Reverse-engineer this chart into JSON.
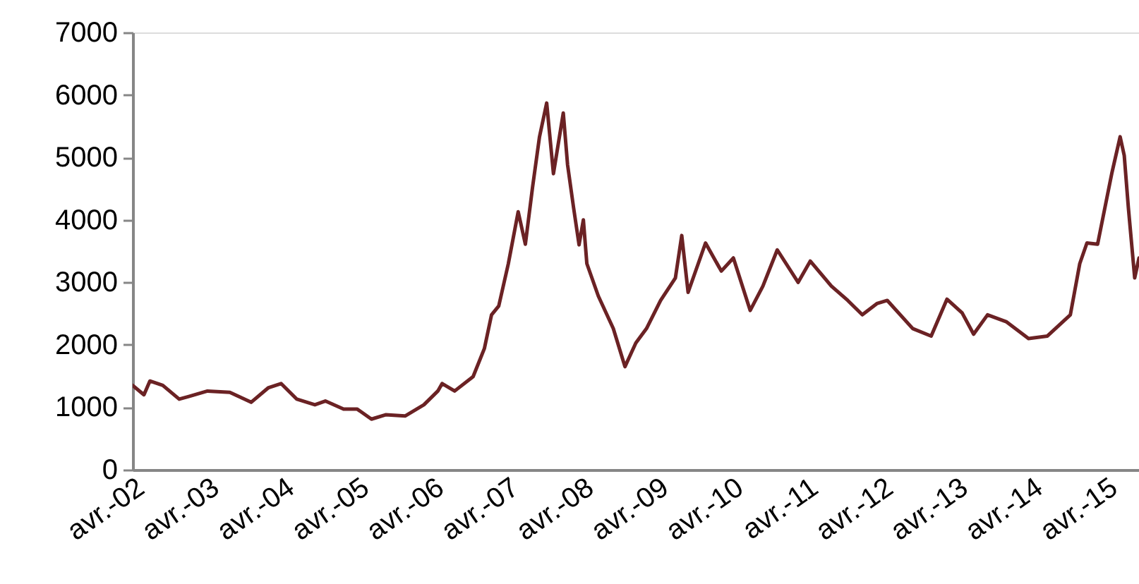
{
  "chart_data": {
    "type": "line",
    "x": [
      "2002-04-01",
      "2002-05-26",
      "2002-06-24",
      "2002-08-26",
      "2002-11-14",
      "2002-12-28",
      "2003-04-01",
      "2003-07-19",
      "2003-10-31",
      "2004-01-22",
      "2004-03-25",
      "2004-06-10",
      "2004-09-06",
      "2004-10-27",
      "2005-01-24",
      "2005-04-01",
      "2005-06-09",
      "2005-08-17",
      "2005-11-20",
      "2006-02-20",
      "2006-04-29",
      "2006-05-20",
      "2006-07-20",
      "2006-10-18",
      "2006-12-12",
      "2007-01-16",
      "2007-02-20",
      "2007-04-08",
      "2007-05-26",
      "2007-06-30",
      "2007-08-04",
      "2007-09-07",
      "2007-10-12",
      "2007-11-14",
      "2008-01-01",
      "2008-01-22",
      "2008-02-20",
      "2008-03-18",
      "2008-04-08",
      "2008-04-25",
      "2008-06-20",
      "2008-09-01",
      "2008-10-28",
      "2008-12-20",
      "2009-02-10",
      "2009-04-20",
      "2009-07-01",
      "2009-08-01",
      "2009-09-01",
      "2009-11-25",
      "2010-02-10",
      "2010-04-10",
      "2010-07-01",
      "2010-09-01",
      "2010-11-10",
      "2011-02-20",
      "2011-04-20",
      "2011-08-01",
      "2011-10-20",
      "2011-12-30",
      "2012-03-10",
      "2012-04-30",
      "2012-09-01",
      "2012-11-30",
      "2013-02-15",
      "2013-04-30",
      "2013-06-25",
      "2013-09-01",
      "2013-12-01",
      "2014-03-20",
      "2014-06-20",
      "2014-10-10",
      "2014-11-25",
      "2014-12-30",
      "2015-02-20",
      "2015-04-30",
      "2015-06-10",
      "2015-06-30",
      "2015-07-20",
      "2015-08-20",
      "2015-09-10"
    ],
    "series": [
      {
        "color": "#6b2224",
        "values": [
          1350,
          1200,
          1420,
          1350,
          1130,
          1170,
          1260,
          1240,
          1080,
          1310,
          1380,
          1130,
          1040,
          1100,
          970,
          970,
          810,
          880,
          860,
          1040,
          1260,
          1380,
          1260,
          1490,
          1940,
          2480,
          2620,
          3300,
          4130,
          3610,
          4520,
          5330,
          5870,
          4740,
          5710,
          4880,
          4200,
          3600,
          4000,
          3300,
          2780,
          2260,
          1650,
          2030,
          2260,
          2710,
          3070,
          3750,
          2840,
          3630,
          3180,
          3390,
          2550,
          2940,
          3520,
          3000,
          3340,
          2940,
          2710,
          2480,
          2660,
          2710,
          2260,
          2140,
          2730,
          2510,
          2170,
          2480,
          2370,
          2100,
          2140,
          2480,
          3300,
          3630,
          3610,
          4740,
          5330,
          5030,
          4200,
          3070,
          3390
        ]
      }
    ],
    "xlim": [
      "2002-04-01",
      "2015-09-10"
    ],
    "xticks": [
      {
        "value": "2002-04-01",
        "label": "avr.-02"
      },
      {
        "value": "2003-04-01",
        "label": "avr.-03"
      },
      {
        "value": "2004-04-01",
        "label": "avr.-04"
      },
      {
        "value": "2005-04-01",
        "label": "avr.-05"
      },
      {
        "value": "2006-04-01",
        "label": "avr.-06"
      },
      {
        "value": "2007-04-01",
        "label": "avr.-07"
      },
      {
        "value": "2008-04-01",
        "label": "avr.-08"
      },
      {
        "value": "2009-04-01",
        "label": "avr.-09"
      },
      {
        "value": "2010-04-01",
        "label": "avr.-10"
      },
      {
        "value": "2011-04-01",
        "label": "avr.-11"
      },
      {
        "value": "2012-04-01",
        "label": "avr.-12"
      },
      {
        "value": "2013-04-01",
        "label": "avr.-13"
      },
      {
        "value": "2014-04-01",
        "label": "avr.-14"
      },
      {
        "value": "2015-04-01",
        "label": "avr.-15"
      }
    ],
    "ylim": [
      0,
      7000
    ],
    "yticks": [
      0,
      1000,
      2000,
      3000,
      4000,
      5000,
      6000,
      7000
    ],
    "grid": false,
    "marker": "none",
    "line_style": "solid"
  }
}
